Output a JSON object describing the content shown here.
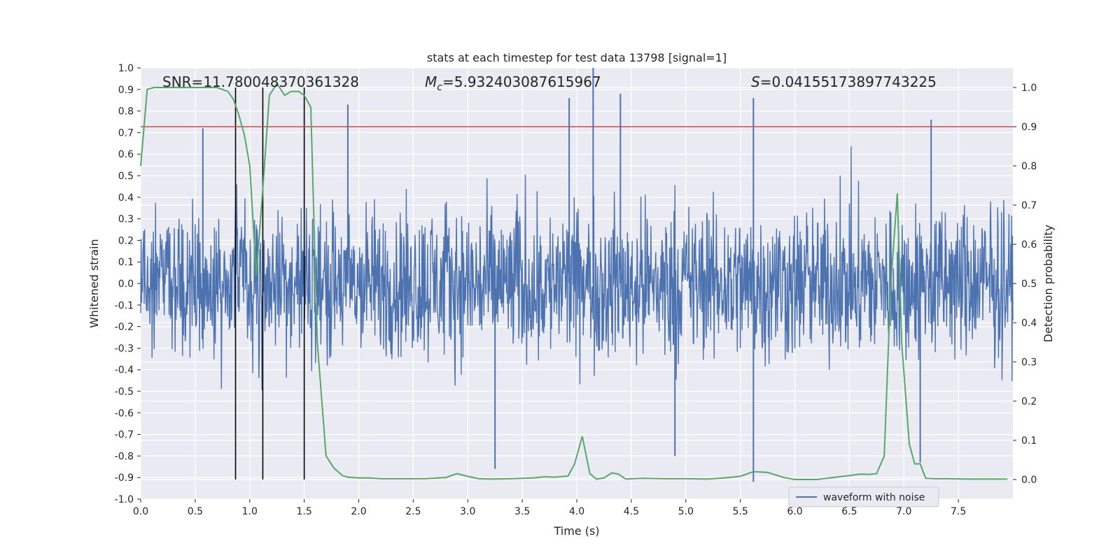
{
  "chart_data": {
    "type": "line",
    "title": "stats at each timestep for test data 13798 [signal=1]",
    "xlabel": "Time (s)",
    "ylabel": "Whitened strain",
    "ylabel_right": "Detection probability",
    "xlim": [
      0.0,
      8.0
    ],
    "ylim": [
      -1.0,
      1.0
    ],
    "ylim_right": [
      -0.05,
      1.05
    ],
    "x_ticks": [
      "0.0",
      "0.5",
      "1.0",
      "1.5",
      "2.0",
      "2.5",
      "3.0",
      "3.5",
      "4.0",
      "4.5",
      "5.0",
      "5.5",
      "6.0",
      "6.5",
      "7.0",
      "7.5"
    ],
    "y_ticks": [
      "-1.0",
      "-0.9",
      "-0.8",
      "-0.7",
      "-0.6",
      "-0.5",
      "-0.4",
      "-0.3",
      "-0.2",
      "-0.1",
      "0.0",
      "0.1",
      "0.2",
      "0.3",
      "0.4",
      "0.5",
      "0.6",
      "0.7",
      "0.8",
      "0.9",
      "1.0"
    ],
    "y_right_ticks": [
      "0.0",
      "0.1",
      "0.2",
      "0.3",
      "0.4",
      "0.5",
      "0.6",
      "0.7",
      "0.8",
      "0.9",
      "1.0"
    ],
    "annotations": {
      "snr_label": "SNR=",
      "snr_value": "11.780048370361328",
      "mc_symbol": "M",
      "mc_subscript": "c",
      "mc_value": "=5.932403087615967",
      "s_symbol": "S",
      "s_value": "=0.04155173897743225"
    },
    "threshold_right": 0.9,
    "vertical_lines_x": [
      0.87,
      1.12,
      1.5
    ],
    "legend": [
      "waveform with noise"
    ],
    "series": [
      {
        "name": "waveform with noise",
        "axis": "left",
        "color": "#4c72b0",
        "typical_amplitude": 0.45,
        "max": 1.0,
        "min": -0.92,
        "peaks": [
          {
            "x": 0.57,
            "y": 0.72
          },
          {
            "x": 1.9,
            "y": 0.83
          },
          {
            "x": 3.93,
            "y": 0.86
          },
          {
            "x": 4.15,
            "y": 1.0
          },
          {
            "x": 4.4,
            "y": 0.88
          },
          {
            "x": 5.62,
            "y": 0.86
          },
          {
            "x": 7.25,
            "y": 0.76
          },
          {
            "x": 3.25,
            "y": -0.86
          },
          {
            "x": 4.9,
            "y": -0.8
          },
          {
            "x": 5.62,
            "y": -0.92
          },
          {
            "x": 7.15,
            "y": -0.83
          }
        ]
      },
      {
        "name": "detection probability",
        "axis": "right",
        "color": "#55a868",
        "x": [
          0.0,
          0.06,
          0.12,
          0.2,
          0.3,
          0.4,
          0.5,
          0.6,
          0.7,
          0.8,
          0.85,
          0.9,
          0.95,
          1.0,
          1.06,
          1.12,
          1.18,
          1.25,
          1.32,
          1.38,
          1.45,
          1.5,
          1.56,
          1.62,
          1.7,
          1.77,
          1.85,
          1.9,
          2.0,
          2.1,
          2.2,
          2.4,
          2.6,
          2.8,
          2.9,
          3.0,
          3.1,
          3.2,
          3.4,
          3.6,
          3.7,
          3.8,
          3.92,
          3.98,
          4.05,
          4.12,
          4.18,
          4.25,
          4.32,
          4.38,
          4.45,
          4.6,
          4.8,
          5.0,
          5.2,
          5.35,
          5.5,
          5.62,
          5.75,
          5.9,
          6.0,
          6.2,
          6.5,
          6.6,
          6.68,
          6.75,
          6.82,
          6.88,
          6.94,
          6.98,
          7.05,
          7.1,
          7.15,
          7.2,
          7.28,
          7.4,
          7.6,
          7.8,
          7.95
        ],
        "values": [
          0.8,
          0.995,
          1.0,
          1.0,
          1.0,
          1.0,
          1.0,
          1.0,
          1.0,
          0.99,
          0.97,
          0.93,
          0.88,
          0.8,
          0.52,
          0.74,
          0.98,
          1.01,
          0.98,
          0.99,
          0.99,
          0.98,
          0.95,
          0.35,
          0.06,
          0.03,
          0.01,
          0.006,
          0.004,
          0.004,
          0.002,
          0.002,
          0.002,
          0.005,
          0.015,
          0.008,
          0.002,
          0.001,
          0.002,
          0.004,
          0.007,
          0.006,
          0.009,
          0.04,
          0.11,
          0.015,
          0.001,
          0.004,
          0.017,
          0.014,
          0.001,
          0.003,
          0.002,
          0.002,
          0.001,
          0.004,
          0.008,
          0.02,
          0.018,
          0.005,
          0.0,
          0.0,
          0.01,
          0.014,
          0.013,
          0.015,
          0.06,
          0.5,
          0.73,
          0.35,
          0.09,
          0.04,
          0.04,
          0.003,
          0.002,
          0.002,
          0.001,
          0.001,
          0.001
        ]
      }
    ]
  }
}
